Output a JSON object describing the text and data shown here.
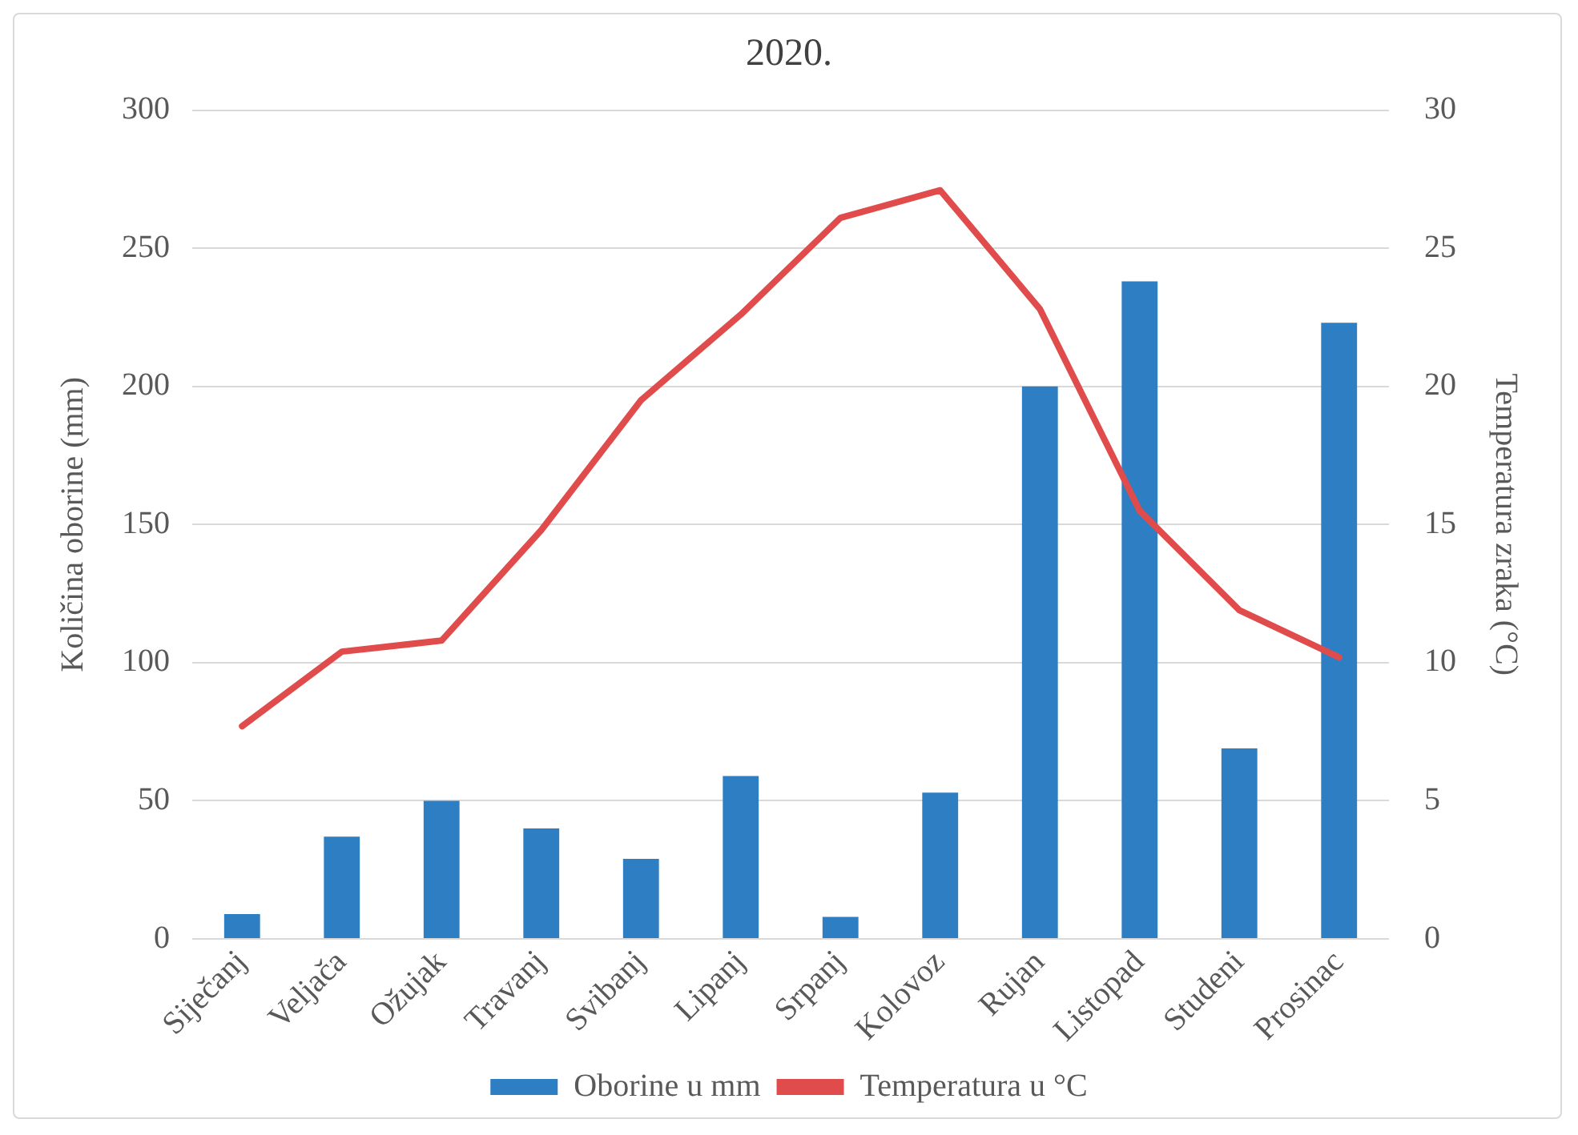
{
  "chart_data": {
    "type": "bar",
    "title": "2020.",
    "ylabel": "Količina oborine (mm)",
    "y2label": "Temperatura zraka (°C)",
    "categories": [
      "Siječanj",
      "Veljača",
      "Ožujak",
      "Travanj",
      "Svibanj",
      "Lipanj",
      "Srpanj",
      "Kolovoz",
      "Rujan",
      "Listopad",
      "Studeni",
      "Prosinac"
    ],
    "series": [
      {
        "name": "Oborine u mm",
        "color": "#2e7ec4",
        "values": [
          9,
          37,
          50,
          40,
          29,
          59,
          8,
          53,
          200,
          238,
          69,
          223
        ]
      },
      {
        "name": "Temperatura u °C",
        "type": "line",
        "axis": "y2",
        "color": "#e04b4b",
        "values": [
          7.7,
          10.4,
          10.8,
          14.8,
          19.5,
          22.6,
          26.1,
          27.1,
          22.8,
          15.5,
          11.9,
          10.2
        ]
      }
    ],
    "ylim": [
      0,
      300
    ],
    "yticks": [
      0,
      50,
      100,
      150,
      200,
      250,
      300
    ],
    "y2lim": [
      0,
      30
    ],
    "y2ticks": [
      0,
      5,
      10,
      15,
      20,
      25,
      30
    ],
    "grid": "y",
    "legend": "bottom",
    "marker": "none"
  }
}
